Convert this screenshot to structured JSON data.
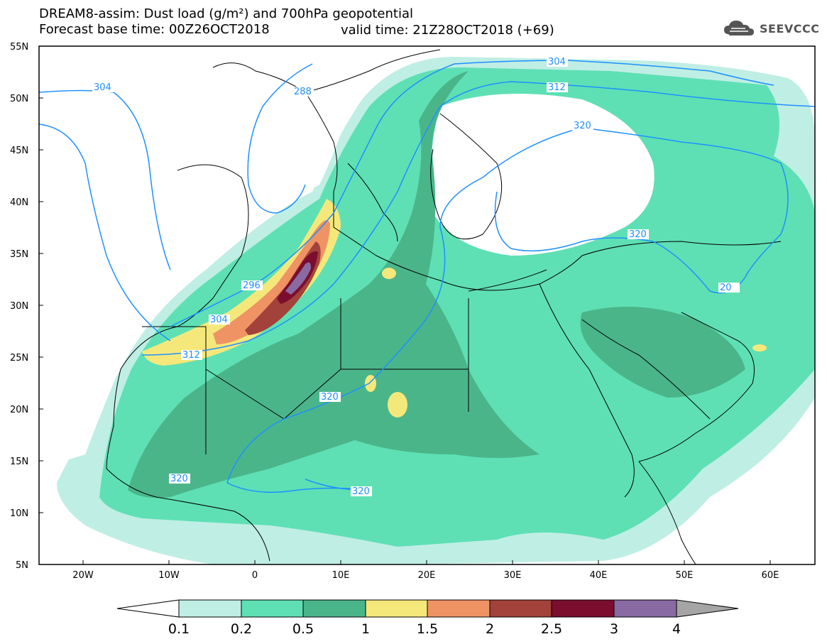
{
  "header": {
    "line1": "DREAM8-assim: Dust load (g/m²) and 700hPa geopotential",
    "line2a": "Forecast base time: 00Z26OCT2018",
    "line2b": "valid time: 21Z28OCT2018 (+69)",
    "logo": "SEEVCCC"
  },
  "axes": {
    "lat_labels": [
      "55N",
      "50N",
      "45N",
      "40N",
      "35N",
      "30N",
      "25N",
      "20N",
      "15N",
      "10N",
      "5N"
    ],
    "lon_labels": [
      "20W",
      "10W",
      "0",
      "10E",
      "20E",
      "30E",
      "40E",
      "50E",
      "60E"
    ]
  },
  "contour_labels": [
    "304",
    "288",
    "304",
    "312",
    "320",
    "296",
    "304",
    "312",
    "320",
    "320",
    "320",
    "320",
    "20"
  ],
  "colorbar": {
    "ticks": [
      "0.1",
      "0.2",
      "0.5",
      "1",
      "1.5",
      "2",
      "2.5",
      "3",
      "4"
    ],
    "colors": [
      "#bfeee4",
      "#5ee0b4",
      "#4bb58a",
      "#f5e87a",
      "#ef9364",
      "#a3423a",
      "#7b0d2e",
      "#8a6aa3",
      "#a5a5a5"
    ]
  }
}
